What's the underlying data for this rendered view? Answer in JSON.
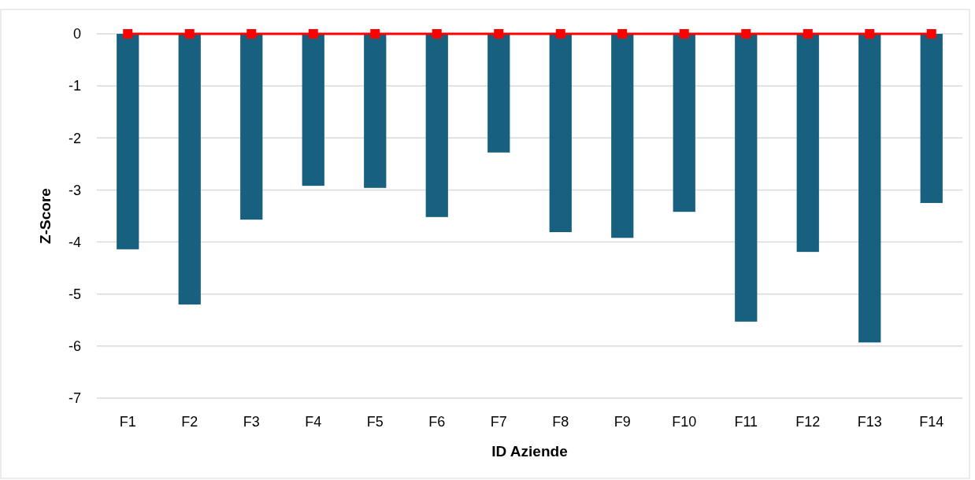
{
  "chart_data": {
    "type": "bar",
    "xlabel": "ID Aziende",
    "ylabel": "Z-Score",
    "categories": [
      "F1",
      "F2",
      "F3",
      "F4",
      "F5",
      "F6",
      "F7",
      "F8",
      "F9",
      "F10",
      "F11",
      "F12",
      "F13",
      "F14"
    ],
    "series": [
      {
        "color": "#17607f",
        "values": [
          -4.14,
          -5.2,
          -3.57,
          -2.92,
          -2.96,
          -3.52,
          -2.28,
          -3.81,
          -3.92,
          -3.42,
          -5.53,
          -4.19,
          -5.93,
          -3.25
        ]
      },
      {
        "type": "line",
        "color": "#ff0000",
        "marker": "square",
        "values": [
          0,
          0,
          0,
          0,
          0,
          0,
          0,
          0,
          0,
          0,
          0,
          0,
          0,
          0
        ]
      }
    ],
    "ylim": [
      -7,
      0
    ],
    "yticks": [
      -7,
      -6,
      -5,
      -4,
      -3,
      -2,
      -1,
      0
    ],
    "grid": "y"
  }
}
